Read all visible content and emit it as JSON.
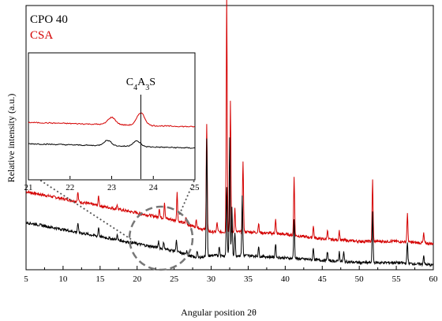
{
  "chart_data": {
    "type": "line",
    "title": "",
    "xlabel": "Angular position 2θ",
    "ylabel": "Relative intensity (a.u.)",
    "xlim": [
      5,
      60
    ],
    "x_ticks": [
      5,
      10,
      15,
      20,
      25,
      30,
      35,
      40,
      45,
      50,
      55,
      60
    ],
    "grid": false,
    "legend_position": "top-left",
    "series": [
      {
        "name": "CPO 40",
        "color": "#000000",
        "baseline": [
          [
            5,
            0.2
          ],
          [
            10,
            0.17
          ],
          [
            15,
            0.14
          ],
          [
            20,
            0.11
          ],
          [
            25,
            0.08
          ],
          [
            28,
            0.05
          ],
          [
            30,
            0.06
          ],
          [
            35,
            0.06
          ],
          [
            40,
            0.05
          ],
          [
            45,
            0.04
          ],
          [
            50,
            0.03
          ],
          [
            55,
            0.03
          ],
          [
            60,
            0.02
          ]
        ],
        "peaks": [
          [
            12.0,
            0.04
          ],
          [
            14.8,
            0.04
          ],
          [
            17.3,
            0.02
          ],
          [
            22.9,
            0.03
          ],
          [
            23.6,
            0.03
          ],
          [
            25.3,
            0.05
          ],
          [
            26.7,
            0.02
          ],
          [
            28.1,
            0.03
          ],
          [
            29.4,
            0.5
          ],
          [
            31.1,
            0.04
          ],
          [
            32.1,
            0.29
          ],
          [
            32.5,
            0.5
          ],
          [
            32.8,
            0.2
          ],
          [
            33.2,
            0.1
          ],
          [
            34.2,
            0.25
          ],
          [
            36.4,
            0.04
          ],
          [
            38.7,
            0.06
          ],
          [
            41.2,
            0.17
          ],
          [
            43.8,
            0.05
          ],
          [
            45.7,
            0.04
          ],
          [
            47.3,
            0.04
          ],
          [
            47.9,
            0.04
          ],
          [
            51.8,
            0.21
          ],
          [
            56.5,
            0.09
          ],
          [
            58.7,
            0.04
          ]
        ]
      },
      {
        "name": "CSA",
        "color": "#d40000",
        "baseline": [
          [
            5,
            0.33
          ],
          [
            10,
            0.3
          ],
          [
            15,
            0.27
          ],
          [
            20,
            0.24
          ],
          [
            25,
            0.21
          ],
          [
            28,
            0.18
          ],
          [
            30,
            0.16
          ],
          [
            35,
            0.16
          ],
          [
            40,
            0.15
          ],
          [
            45,
            0.13
          ],
          [
            50,
            0.12
          ],
          [
            55,
            0.12
          ],
          [
            60,
            0.11
          ]
        ],
        "peaks": [
          [
            12.0,
            0.04
          ],
          [
            14.8,
            0.04
          ],
          [
            17.3,
            0.02
          ],
          [
            23.0,
            0.04
          ],
          [
            23.7,
            0.07
          ],
          [
            25.4,
            0.12
          ],
          [
            26.6,
            0.03
          ],
          [
            28.0,
            0.03
          ],
          [
            29.4,
            0.45
          ],
          [
            30.8,
            0.04
          ],
          [
            32.1,
            1.0
          ],
          [
            32.6,
            0.55
          ],
          [
            33.2,
            0.1
          ],
          [
            34.3,
            0.3
          ],
          [
            36.4,
            0.04
          ],
          [
            38.7,
            0.06
          ],
          [
            41.2,
            0.25
          ],
          [
            43.8,
            0.05
          ],
          [
            45.7,
            0.04
          ],
          [
            47.3,
            0.04
          ],
          [
            51.8,
            0.26
          ],
          [
            56.5,
            0.12
          ],
          [
            58.7,
            0.04
          ]
        ]
      }
    ],
    "inset": {
      "xlim": [
        21,
        25
      ],
      "x_ticks": [
        21,
        22,
        23,
        24,
        25
      ],
      "annotation": "C4A3S",
      "annotation_x": 23.7
    }
  }
}
